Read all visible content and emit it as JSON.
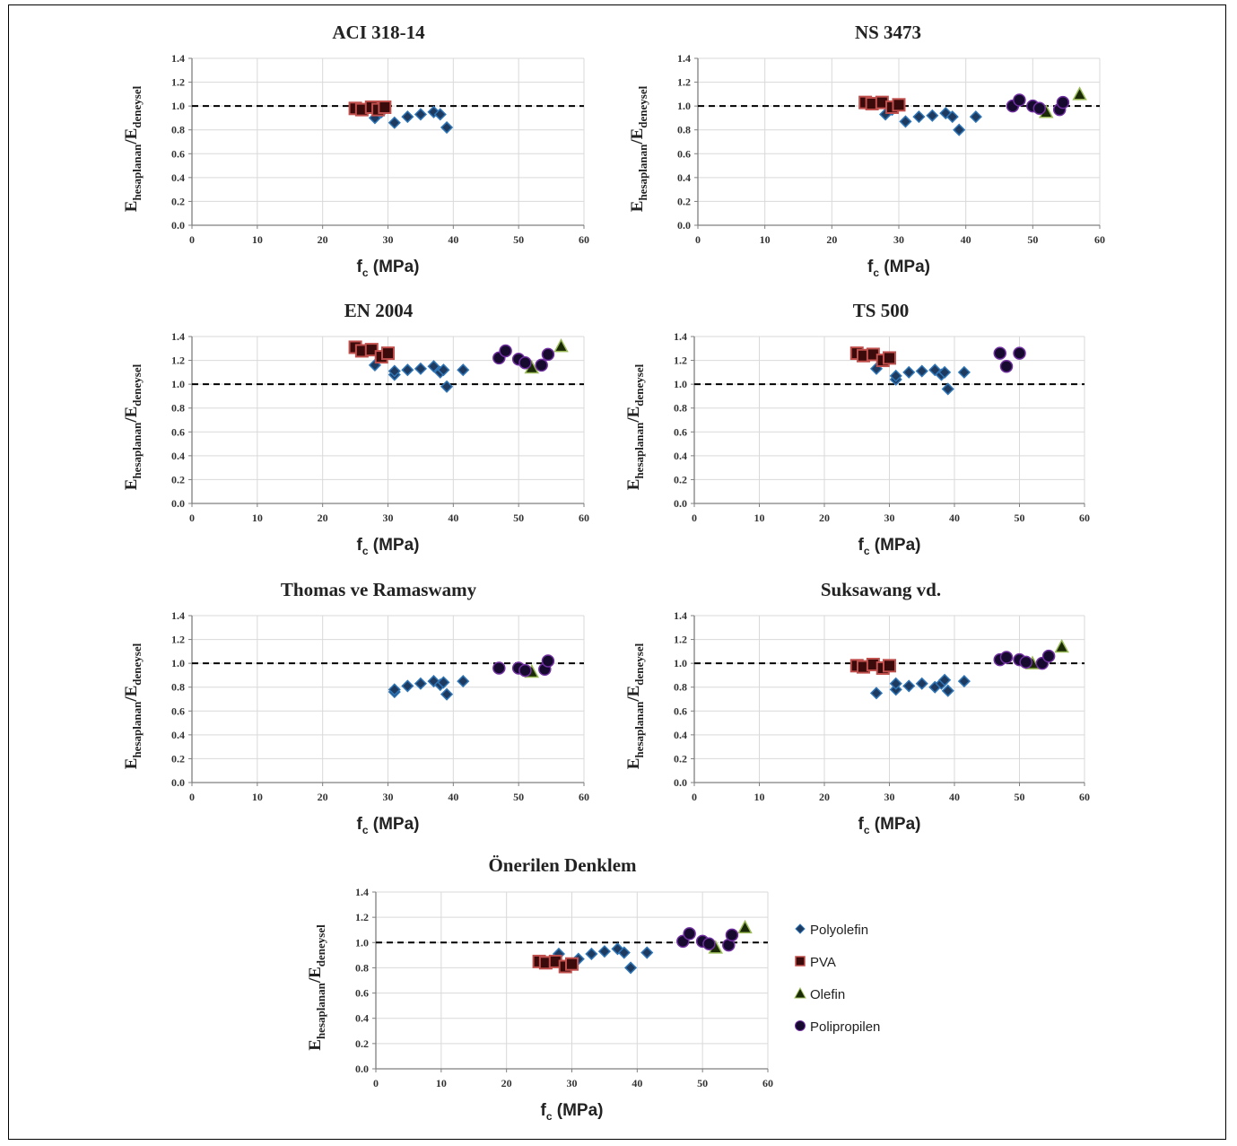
{
  "legend": {
    "series": [
      {
        "name": "Polyolefin",
        "marker": "diamond"
      },
      {
        "name": "PVA",
        "marker": "square"
      },
      {
        "name": "Olefin",
        "marker": "triangle"
      },
      {
        "name": "Polipropilen",
        "marker": "circle"
      }
    ]
  },
  "style": {
    "diamond_fill": "#1f3a5f",
    "diamond_edge": "#2e75b6",
    "square_fill": "#3b0a0a",
    "square_edge": "#c0504d",
    "triangle_fill": "#1a2a06",
    "triangle_edge": "#9bbb59",
    "circle_fill": "#160a2e",
    "circle_edge": "#7030a0",
    "grid": "#d9d9d9",
    "axis": "#7f7f7f",
    "refline": "#000000"
  },
  "chart_data": [
    {
      "type": "scatter",
      "title": "ACI 318-14",
      "xlabel": "f",
      "xlabel_sub": "c",
      "xlabel_unit": " (MPa)",
      "ylabel": "E",
      "ylabel_sub1": "hesaplanan",
      "ylabel_mid": "/E",
      "ylabel_sub2": "deneysel",
      "xlim": [
        0,
        60
      ],
      "ylim": [
        0,
        1.4
      ],
      "x_ticks": [
        0,
        10,
        20,
        30,
        40,
        50,
        60
      ],
      "y_ticks": [
        "0.0",
        "0.2",
        "0.4",
        "0.6",
        "0.8",
        "1.0",
        "1.2",
        "1.4"
      ],
      "reference_line": 1.0,
      "grid": true,
      "series": [
        {
          "name": "Polyolefin",
          "points": [
            [
              28,
              0.9
            ],
            [
              29,
              0.95
            ],
            [
              31,
              0.86
            ],
            [
              33,
              0.91
            ],
            [
              35,
              0.93
            ],
            [
              37,
              0.95
            ],
            [
              38,
              0.93
            ],
            [
              39,
              0.82
            ]
          ]
        },
        {
          "name": "PVA",
          "points": [
            [
              25,
              0.98
            ],
            [
              26,
              0.97
            ],
            [
              27.5,
              0.99
            ],
            [
              28.5,
              0.97
            ],
            [
              29.5,
              0.99
            ]
          ]
        },
        {
          "name": "Olefin",
          "points": []
        },
        {
          "name": "Polipropilen",
          "points": []
        }
      ]
    },
    {
      "type": "scatter",
      "title": "NS 3473",
      "xlabel": "f",
      "xlabel_sub": "c",
      "xlabel_unit": " (MPa)",
      "ylabel": "E",
      "ylabel_sub1": "hesaplanan",
      "ylabel_mid": "/E",
      "ylabel_sub2": "deneysel",
      "xlim": [
        0,
        60
      ],
      "ylim": [
        0,
        1.4
      ],
      "x_ticks": [
        0,
        10,
        20,
        30,
        40,
        50,
        60
      ],
      "y_ticks": [
        "0.0",
        "0.2",
        "0.4",
        "0.6",
        "0.8",
        "1.0",
        "1.2",
        "1.4"
      ],
      "reference_line": 1.0,
      "grid": true,
      "series": [
        {
          "name": "Polyolefin",
          "points": [
            [
              28,
              0.93
            ],
            [
              29,
              0.97
            ],
            [
              31,
              0.87
            ],
            [
              33,
              0.91
            ],
            [
              35,
              0.92
            ],
            [
              37,
              0.94
            ],
            [
              38,
              0.91
            ],
            [
              39,
              0.8
            ],
            [
              41.5,
              0.91
            ]
          ]
        },
        {
          "name": "PVA",
          "points": [
            [
              25,
              1.03
            ],
            [
              26,
              1.02
            ],
            [
              27.5,
              1.03
            ],
            [
              29,
              0.99
            ],
            [
              30,
              1.01
            ]
          ]
        },
        {
          "name": "Olefin",
          "points": [
            [
              52,
              0.95
            ],
            [
              57,
              1.1
            ]
          ]
        },
        {
          "name": "Polipropilen",
          "points": [
            [
              47,
              1.0
            ],
            [
              48,
              1.05
            ],
            [
              50,
              1.0
            ],
            [
              51,
              0.98
            ],
            [
              54,
              0.97
            ],
            [
              54.5,
              1.03
            ]
          ]
        }
      ]
    },
    {
      "type": "scatter",
      "title": "EN 2004",
      "xlabel": "f",
      "xlabel_sub": "c",
      "xlabel_unit": " (MPa)",
      "ylabel": "E",
      "ylabel_sub1": "hesaplanan",
      "ylabel_mid": "/E",
      "ylabel_sub2": "deneysel",
      "xlim": [
        0,
        60
      ],
      "ylim": [
        0,
        1.4
      ],
      "x_ticks": [
        0,
        10,
        20,
        30,
        40,
        50,
        60
      ],
      "y_ticks": [
        "0.0",
        "0.2",
        "0.4",
        "0.6",
        "0.8",
        "1.0",
        "1.2",
        "1.4"
      ],
      "reference_line": 1.0,
      "grid": true,
      "series": [
        {
          "name": "Polyolefin",
          "points": [
            [
              28,
              1.16
            ],
            [
              31,
              1.08
            ],
            [
              31,
              1.11
            ],
            [
              33,
              1.12
            ],
            [
              35,
              1.13
            ],
            [
              37,
              1.15
            ],
            [
              38,
              1.1
            ],
            [
              38.5,
              1.12
            ],
            [
              39,
              0.98
            ],
            [
              41.5,
              1.12
            ]
          ]
        },
        {
          "name": "PVA",
          "points": [
            [
              25,
              1.31
            ],
            [
              26,
              1.28
            ],
            [
              27.5,
              1.29
            ],
            [
              29,
              1.23
            ],
            [
              30,
              1.26
            ]
          ]
        },
        {
          "name": "Olefin",
          "points": [
            [
              52,
              1.14
            ],
            [
              56.5,
              1.32
            ]
          ]
        },
        {
          "name": "Polipropilen",
          "points": [
            [
              47,
              1.22
            ],
            [
              48,
              1.28
            ],
            [
              50,
              1.21
            ],
            [
              51,
              1.18
            ],
            [
              53.5,
              1.16
            ],
            [
              54.5,
              1.25
            ]
          ]
        }
      ]
    },
    {
      "type": "scatter",
      "title": "TS 500",
      "xlabel": "f",
      "xlabel_sub": "c",
      "xlabel_unit": " (MPa)",
      "ylabel": "E",
      "ylabel_sub1": "hesaplanan",
      "ylabel_mid": "/E",
      "ylabel_sub2": "deneysel",
      "xlim": [
        0,
        60
      ],
      "ylim": [
        0,
        1.4
      ],
      "x_ticks": [
        0,
        10,
        20,
        30,
        40,
        50,
        60
      ],
      "y_ticks": [
        "0.0",
        "0.2",
        "0.4",
        "0.6",
        "0.8",
        "1.0",
        "1.2",
        "1.4"
      ],
      "reference_line": 1.0,
      "grid": true,
      "series": [
        {
          "name": "Polyolefin",
          "points": [
            [
              28,
              1.13
            ],
            [
              31,
              1.04
            ],
            [
              31,
              1.07
            ],
            [
              33,
              1.1
            ],
            [
              35,
              1.11
            ],
            [
              37,
              1.12
            ],
            [
              38,
              1.08
            ],
            [
              38.5,
              1.1
            ],
            [
              39,
              0.96
            ],
            [
              41.5,
              1.1
            ]
          ]
        },
        {
          "name": "PVA",
          "points": [
            [
              25,
              1.26
            ],
            [
              26,
              1.24
            ],
            [
              27.5,
              1.25
            ],
            [
              29,
              1.2
            ],
            [
              30,
              1.22
            ]
          ]
        },
        {
          "name": "Olefin",
          "points": []
        },
        {
          "name": "Polipropilen",
          "points": [
            [
              47,
              1.26
            ],
            [
              48,
              1.15
            ],
            [
              50,
              1.26
            ]
          ]
        }
      ]
    },
    {
      "type": "scatter",
      "title": "Thomas ve Ramaswamy",
      "xlabel": "f",
      "xlabel_sub": "c",
      "xlabel_unit": " (MPa)",
      "ylabel": "E",
      "ylabel_sub1": "hesaplanan",
      "ylabel_mid": "/E",
      "ylabel_sub2": "deneysel",
      "xlim": [
        0,
        60
      ],
      "ylim": [
        0,
        1.4
      ],
      "x_ticks": [
        0,
        10,
        20,
        30,
        40,
        50,
        60
      ],
      "y_ticks": [
        "0.0",
        "0.2",
        "0.4",
        "0.6",
        "0.8",
        "1.0",
        "1.2",
        "1.4"
      ],
      "reference_line": 1.0,
      "grid": true,
      "series": [
        {
          "name": "Polyolefin",
          "points": [
            [
              31,
              0.76
            ],
            [
              31,
              0.78
            ],
            [
              33,
              0.81
            ],
            [
              35,
              0.83
            ],
            [
              37,
              0.85
            ],
            [
              38,
              0.82
            ],
            [
              38.5,
              0.84
            ],
            [
              39,
              0.74
            ],
            [
              41.5,
              0.85
            ]
          ]
        },
        {
          "name": "PVA",
          "points": []
        },
        {
          "name": "Olefin",
          "points": [
            [
              52,
              0.93
            ]
          ]
        },
        {
          "name": "Polipropilen",
          "points": [
            [
              47,
              0.96
            ],
            [
              50,
              0.96
            ],
            [
              51,
              0.94
            ],
            [
              54,
              0.95
            ],
            [
              54.5,
              1.02
            ]
          ]
        }
      ]
    },
    {
      "type": "scatter",
      "title": "Suksawang vd.",
      "xlabel": "f",
      "xlabel_sub": "c",
      "xlabel_unit": " (MPa)",
      "ylabel": "E",
      "ylabel_sub1": "hesaplanan",
      "ylabel_mid": "/E",
      "ylabel_sub2": "deneysel",
      "xlim": [
        0,
        60
      ],
      "ylim": [
        0,
        1.4
      ],
      "x_ticks": [
        0,
        10,
        20,
        30,
        40,
        50,
        60
      ],
      "y_ticks": [
        "0.0",
        "0.2",
        "0.4",
        "0.6",
        "0.8",
        "1.0",
        "1.2",
        "1.4"
      ],
      "reference_line": 1.0,
      "grid": true,
      "series": [
        {
          "name": "Polyolefin",
          "points": [
            [
              28,
              0.75
            ],
            [
              31,
              0.78
            ],
            [
              31,
              0.83
            ],
            [
              33,
              0.81
            ],
            [
              35,
              0.83
            ],
            [
              37,
              0.8
            ],
            [
              38,
              0.83
            ],
            [
              38.5,
              0.86
            ],
            [
              39,
              0.77
            ],
            [
              41.5,
              0.85
            ]
          ]
        },
        {
          "name": "PVA",
          "points": [
            [
              25,
              0.98
            ],
            [
              26,
              0.97
            ],
            [
              27.5,
              0.99
            ],
            [
              29,
              0.96
            ],
            [
              30,
              0.98
            ]
          ]
        },
        {
          "name": "Olefin",
          "points": [
            [
              52,
              1.0
            ],
            [
              56.5,
              1.14
            ]
          ]
        },
        {
          "name": "Polipropilen",
          "points": [
            [
              47,
              1.03
            ],
            [
              48,
              1.05
            ],
            [
              50,
              1.03
            ],
            [
              51,
              1.01
            ],
            [
              53.5,
              1.0
            ],
            [
              54.5,
              1.06
            ]
          ]
        }
      ]
    },
    {
      "type": "scatter",
      "title": "Önerilen Denklem",
      "xlabel": "f",
      "xlabel_sub": "c",
      "xlabel_unit": " (MPa)",
      "ylabel": "E",
      "ylabel_sub1": "hesaplanan",
      "ylabel_mid": "/E",
      "ylabel_sub2": "deneysel",
      "xlim": [
        0,
        60
      ],
      "ylim": [
        0,
        1.4
      ],
      "x_ticks": [
        0,
        10,
        20,
        30,
        40,
        50,
        60
      ],
      "y_ticks": [
        "0.0",
        "0.2",
        "0.4",
        "0.6",
        "0.8",
        "1.0",
        "1.2",
        "1.4"
      ],
      "reference_line": 1.0,
      "grid": true,
      "series": [
        {
          "name": "Polyolefin",
          "points": [
            [
              28,
              0.91
            ],
            [
              31,
              0.87
            ],
            [
              33,
              0.91
            ],
            [
              35,
              0.93
            ],
            [
              37,
              0.95
            ],
            [
              38,
              0.92
            ],
            [
              39,
              0.8
            ],
            [
              41.5,
              0.92
            ]
          ]
        },
        {
          "name": "PVA",
          "points": [
            [
              25,
              0.85
            ],
            [
              26,
              0.84
            ],
            [
              27.5,
              0.85
            ],
            [
              29,
              0.81
            ],
            [
              30,
              0.83
            ]
          ]
        },
        {
          "name": "Olefin",
          "points": [
            [
              52,
              0.96
            ],
            [
              56.5,
              1.12
            ]
          ]
        },
        {
          "name": "Polipropilen",
          "points": [
            [
              47,
              1.01
            ],
            [
              48,
              1.07
            ],
            [
              50,
              1.01
            ],
            [
              51,
              0.99
            ],
            [
              54,
              0.98
            ],
            [
              54.5,
              1.06
            ]
          ]
        }
      ]
    }
  ]
}
